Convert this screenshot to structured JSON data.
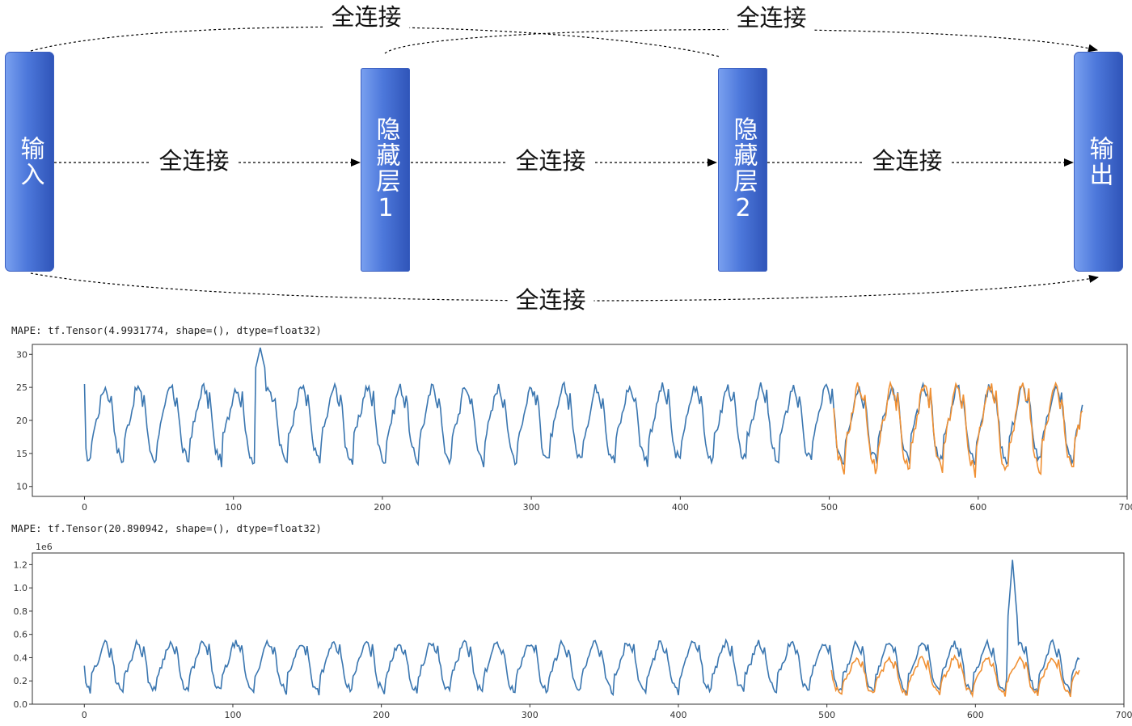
{
  "diagram": {
    "nodes": {
      "input": "输入",
      "hidden1": "隐藏层1",
      "hidden2": "隐藏层2",
      "output": "输出"
    },
    "edge_label": "全连接",
    "edges": [
      {
        "from": "input",
        "to": "hidden1",
        "label": "全连接"
      },
      {
        "from": "hidden1",
        "to": "hidden2",
        "label": "全连接"
      },
      {
        "from": "hidden2",
        "to": "output",
        "label": "全连接"
      },
      {
        "from": "input",
        "to": "hidden2",
        "label": "全连接"
      },
      {
        "from": "hidden1",
        "to": "output",
        "label": "全连接"
      },
      {
        "from": "input",
        "to": "output",
        "label": "全连接"
      }
    ]
  },
  "outputs": [
    {
      "mape_text": "MAPE: tf.Tensor(4.9931774, shape=(), dtype=float32)"
    },
    {
      "mape_text": "MAPE: tf.Tensor(20.890942, shape=(), dtype=float32)"
    }
  ],
  "colors": {
    "series_actual": "#3a76b0",
    "series_pred": "#f09033",
    "node_blue": "#4d78db"
  },
  "chart_data": [
    {
      "type": "line",
      "xlim": [
        -35,
        700
      ],
      "ylim": [
        8.5,
        31.5
      ],
      "xticks": [
        0,
        100,
        200,
        300,
        400,
        500,
        600,
        700
      ],
      "yticks": [
        10,
        15,
        20,
        25,
        30
      ],
      "series": [
        {
          "period": 22,
          "x_start": 0,
          "x_end": 670,
          "low": 13.5,
          "high": 27,
          "spike_x": 118,
          "spike_y": 31,
          "start_y": 25.5
        },
        {
          "period": 22,
          "x_start": 503,
          "x_end": 670,
          "low": 12,
          "high": 27.5
        }
      ]
    },
    {
      "type": "line",
      "offset_text": "1e6",
      "xlim": [
        -35,
        700
      ],
      "ylim": [
        0,
        1.3
      ],
      "xticks": [
        0,
        100,
        200,
        300,
        400,
        500,
        600,
        700
      ],
      "yticks": [
        0.0,
        0.2,
        0.4,
        0.6,
        0.8,
        1.0,
        1.2
      ],
      "series": [
        {
          "period": 22,
          "x_start": 0,
          "x_end": 670,
          "low": 0.1,
          "high": 0.6,
          "spike_x": 625,
          "spike_y": 1.24,
          "start_y": 0.33
        },
        {
          "period": 22,
          "x_start": 503,
          "x_end": 670,
          "low": 0.08,
          "high": 0.45
        }
      ]
    }
  ]
}
